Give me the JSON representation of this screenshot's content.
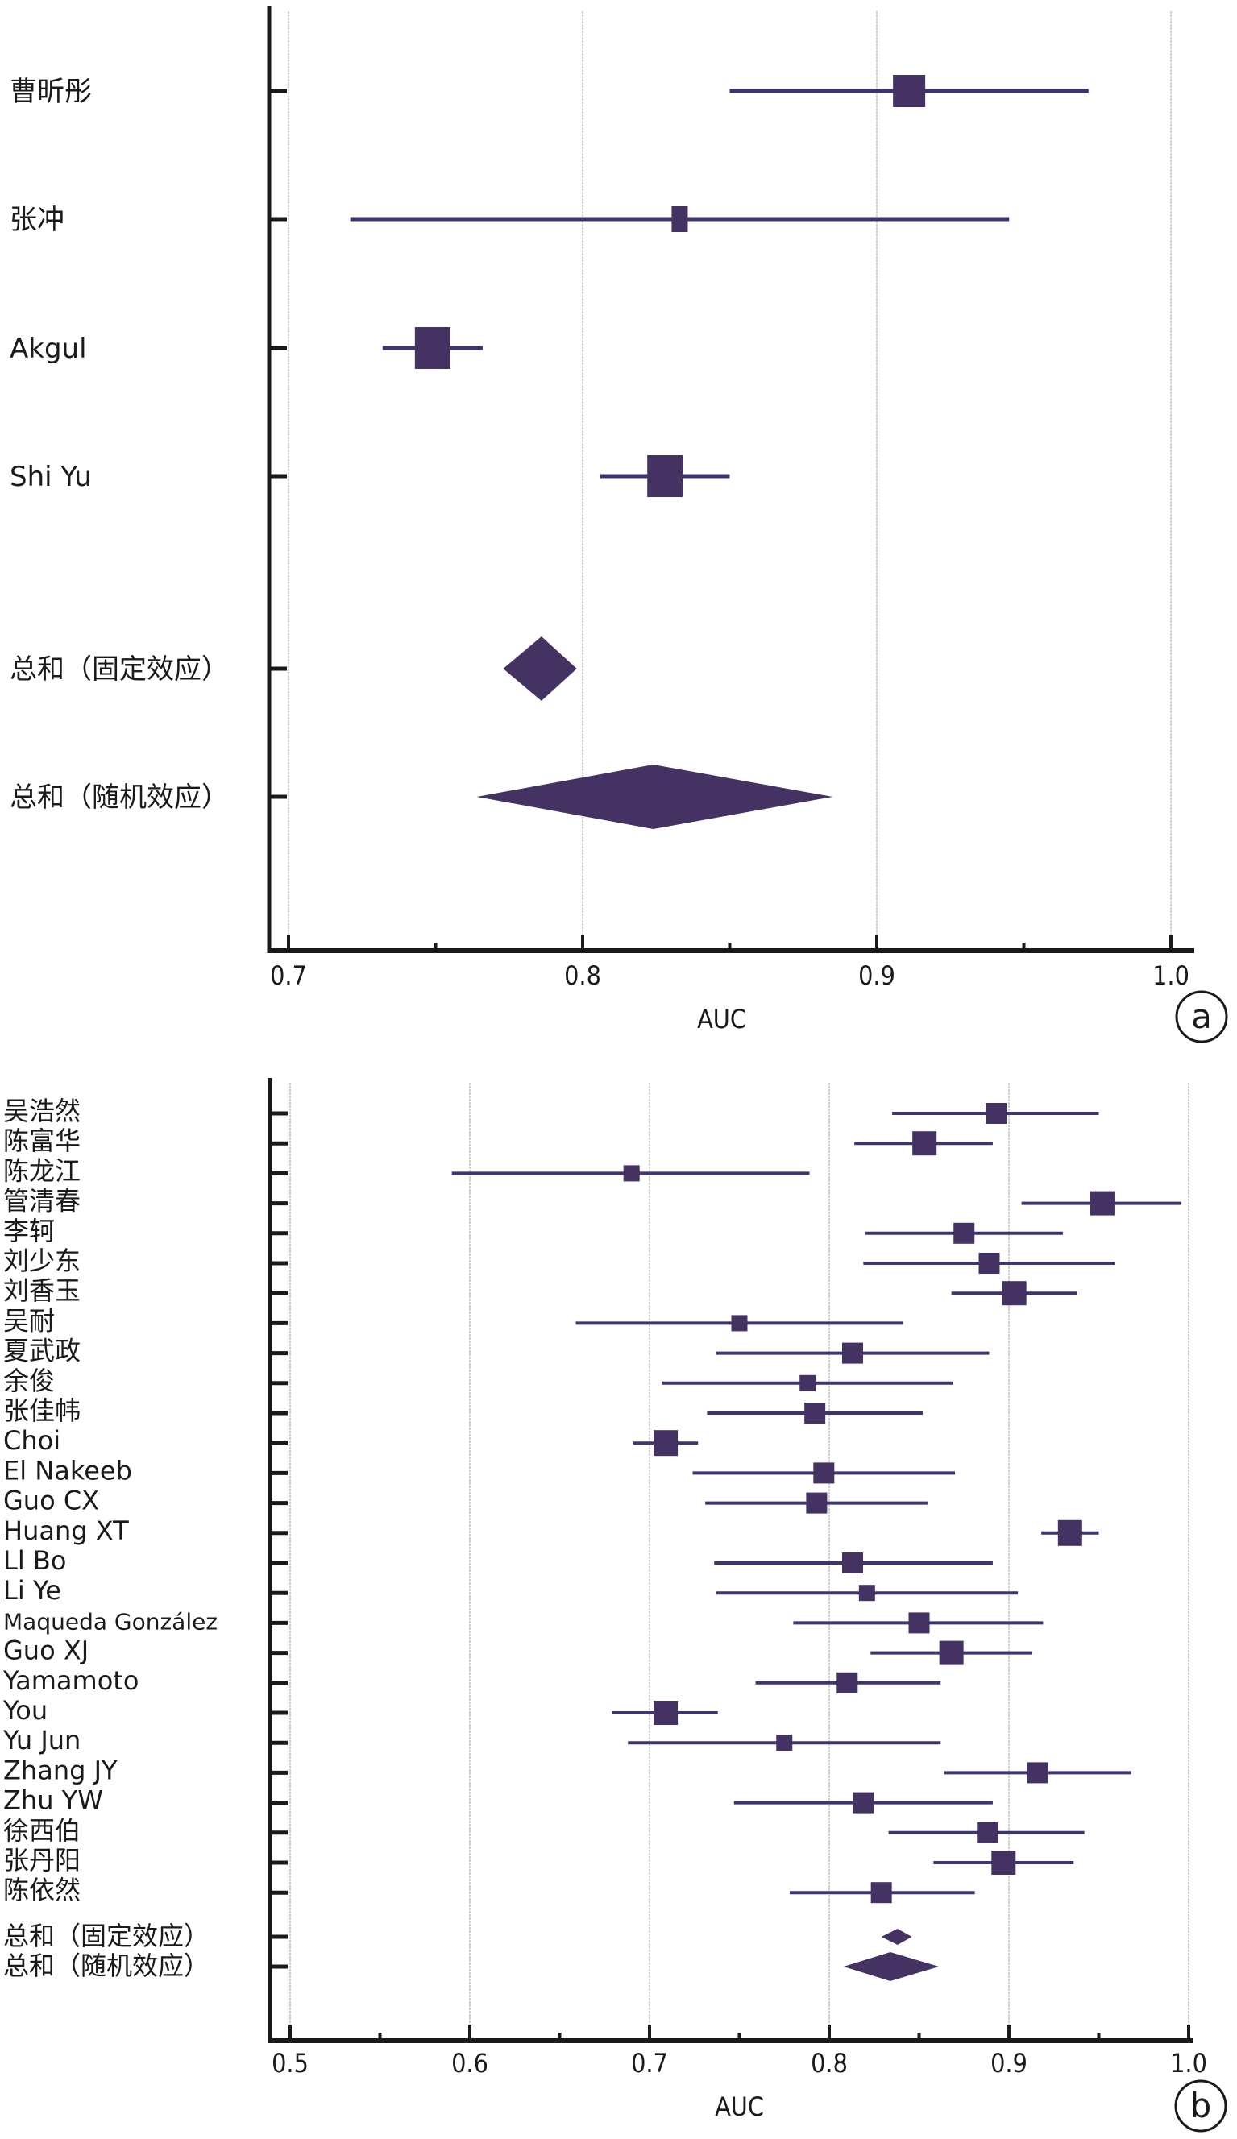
{
  "colors": {
    "marker": "#433262",
    "whisker": "#3d3570",
    "axis": "#1a1a1a",
    "grid": "#d9cfcf"
  },
  "chart_data": [
    {
      "type": "forest",
      "panel_label": "a",
      "xlabel": "AUC",
      "xlim": [
        0.7,
        1.0
      ],
      "xticks": [
        "0.7",
        "0.8",
        "0.9",
        "1.0"
      ],
      "xtick_values": [
        0.7,
        0.8,
        0.9,
        1.0
      ],
      "minor_ticks": [
        0.75,
        0.85,
        0.95
      ],
      "grid": true,
      "studies": [
        {
          "label": "曹昕彤",
          "auc": 0.911,
          "lower": 0.85,
          "upper": 0.972,
          "weight": "large"
        },
        {
          "label": "张冲",
          "auc": 0.833,
          "lower": 0.721,
          "upper": 0.945,
          "weight": "small"
        },
        {
          "label": "Akgul",
          "auc": 0.749,
          "lower": 0.732,
          "upper": 0.766,
          "weight": "large"
        },
        {
          "label": "Shi Yu",
          "auc": 0.828,
          "lower": 0.806,
          "upper": 0.85,
          "weight": "large"
        }
      ],
      "summaries": [
        {
          "label": "总和（固定效应）",
          "auc": 0.786,
          "lower": 0.773,
          "upper": 0.798
        },
        {
          "label": "总和（随机效应）",
          "auc": 0.824,
          "lower": 0.764,
          "upper": 0.885
        }
      ]
    },
    {
      "type": "forest",
      "panel_label": "b",
      "xlabel": "AUC",
      "xlim": [
        0.5,
        1.0
      ],
      "xticks": [
        "0.5",
        "0.6",
        "0.7",
        "0.8",
        "0.9",
        "1.0"
      ],
      "xtick_values": [
        0.5,
        0.6,
        0.7,
        0.8,
        0.9,
        1.0
      ],
      "minor_ticks": [
        0.55,
        0.65,
        0.75,
        0.85,
        0.95
      ],
      "grid": true,
      "studies": [
        {
          "label": "吴浩然",
          "auc": 0.893,
          "lower": 0.835,
          "upper": 0.95
        },
        {
          "label": "陈富华",
          "auc": 0.853,
          "lower": 0.814,
          "upper": 0.891
        },
        {
          "label": "陈龙江",
          "auc": 0.69,
          "lower": 0.59,
          "upper": 0.789
        },
        {
          "label": "管清春",
          "auc": 0.952,
          "lower": 0.907,
          "upper": 0.996
        },
        {
          "label": "李轲",
          "auc": 0.875,
          "lower": 0.82,
          "upper": 0.93
        },
        {
          "label": "刘少东",
          "auc": 0.889,
          "lower": 0.819,
          "upper": 0.959
        },
        {
          "label": "刘香玉",
          "auc": 0.903,
          "lower": 0.868,
          "upper": 0.938
        },
        {
          "label": "吴耐",
          "auc": 0.75,
          "lower": 0.659,
          "upper": 0.841
        },
        {
          "label": "夏武政",
          "auc": 0.813,
          "lower": 0.737,
          "upper": 0.889
        },
        {
          "label": "余俊",
          "auc": 0.788,
          "lower": 0.707,
          "upper": 0.869
        },
        {
          "label": "张佳帏",
          "auc": 0.792,
          "lower": 0.732,
          "upper": 0.852
        },
        {
          "label": "Choi",
          "auc": 0.709,
          "lower": 0.691,
          "upper": 0.727
        },
        {
          "label": "El Nakeeb",
          "auc": 0.797,
          "lower": 0.724,
          "upper": 0.87
        },
        {
          "label": "Guo CX",
          "auc": 0.793,
          "lower": 0.731,
          "upper": 0.855
        },
        {
          "label": "Huang XT",
          "auc": 0.934,
          "lower": 0.918,
          "upper": 0.95
        },
        {
          "label": "Ll Bo",
          "auc": 0.813,
          "lower": 0.736,
          "upper": 0.891
        },
        {
          "label": "Li Ye",
          "auc": 0.821,
          "lower": 0.737,
          "upper": 0.905
        },
        {
          "label": "Maqueda González",
          "auc": 0.85,
          "lower": 0.78,
          "upper": 0.919
        },
        {
          "label": "Guo XJ",
          "auc": 0.868,
          "lower": 0.823,
          "upper": 0.913
        },
        {
          "label": "Yamamoto",
          "auc": 0.81,
          "lower": 0.759,
          "upper": 0.862
        },
        {
          "label": "You",
          "auc": 0.709,
          "lower": 0.679,
          "upper": 0.738
        },
        {
          "label": "Yu Jun",
          "auc": 0.775,
          "lower": 0.688,
          "upper": 0.862
        },
        {
          "label": "Zhang JY",
          "auc": 0.916,
          "lower": 0.864,
          "upper": 0.968
        },
        {
          "label": "Zhu YW",
          "auc": 0.819,
          "lower": 0.747,
          "upper": 0.891
        },
        {
          "label": "徐西伯",
          "auc": 0.888,
          "lower": 0.833,
          "upper": 0.942
        },
        {
          "label": "张丹阳",
          "auc": 0.897,
          "lower": 0.858,
          "upper": 0.936
        },
        {
          "label": "陈依然",
          "auc": 0.829,
          "lower": 0.778,
          "upper": 0.881
        }
      ],
      "summaries": [
        {
          "label": "总和（固定效应）",
          "auc": 0.838,
          "lower": 0.829,
          "upper": 0.846
        },
        {
          "label": "总和（随机效应）",
          "auc": 0.834,
          "lower": 0.808,
          "upper": 0.861
        }
      ]
    }
  ]
}
